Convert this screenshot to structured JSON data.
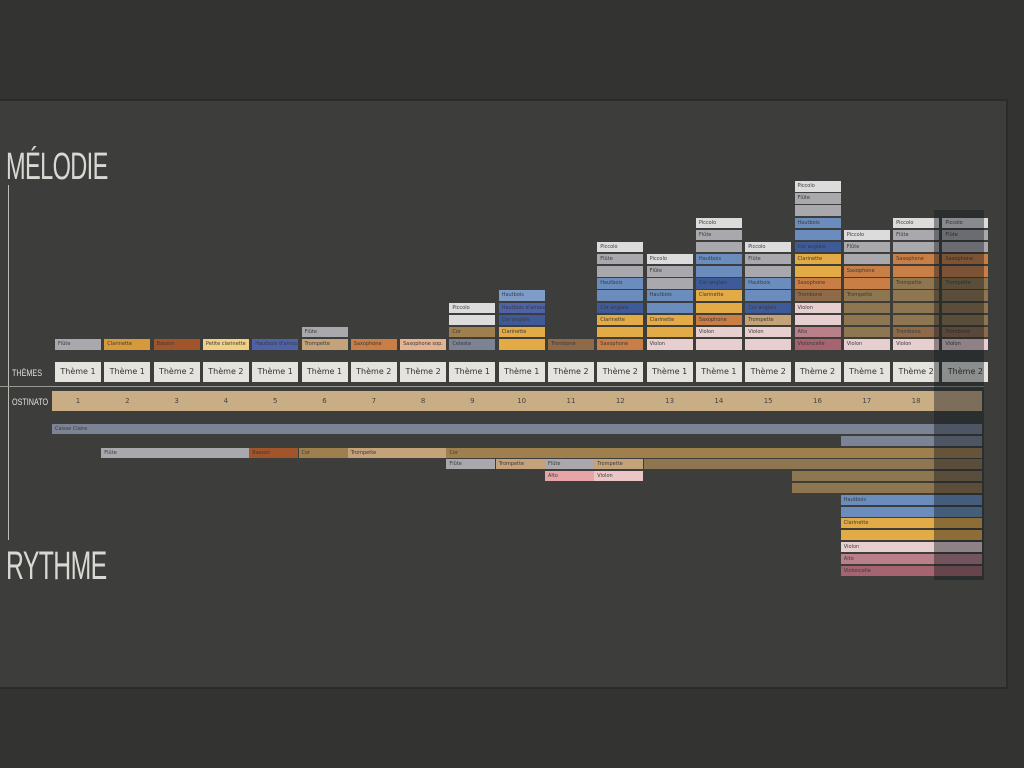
{
  "labels": {
    "melodie": "MÉLODIE",
    "themes": "THÈMES",
    "ostinato": "OSTINATO",
    "rythme": "RYTHME"
  },
  "colors": {
    "grey": "#a9a9ad",
    "white": "#dcdcdc",
    "orange": "#d79a3a",
    "rust": "#a2542a",
    "lightyellow": "#f0cf86",
    "blue": "#4e62a8",
    "tan": "#c4a27a",
    "brown": "#a07f4f",
    "peach": "#e3b392",
    "sax": "#c97e45",
    "slate": "#7b8394",
    "yellow": "#e3ab45",
    "darkblue": "#3f5a98",
    "skyblue": "#7e9dc8",
    "midblue": "#6b8dbd",
    "trombone": "#8e6a49",
    "pink": "#e7cfd0",
    "olive": "#8e7650",
    "mauve": "#b9808a",
    "rose": "#a5646f",
    "lightpink": "#ecc6c6",
    "alto": "#e7a5a7"
  },
  "columns": [
    {
      "theme": "Thème 1",
      "number": "1",
      "stack": [
        [
          "Flûte",
          "grey"
        ]
      ]
    },
    {
      "theme": "Thème 1",
      "number": "2",
      "stack": [
        [
          "Clarinette",
          "orange"
        ]
      ]
    },
    {
      "theme": "Thème 2",
      "number": "3",
      "stack": [
        [
          "Basson",
          "rust"
        ]
      ]
    },
    {
      "theme": "Thème 2",
      "number": "4",
      "stack": [
        [
          "Petite clarinette",
          "lightyellow"
        ]
      ]
    },
    {
      "theme": "Thème 1",
      "number": "5",
      "stack": [
        [
          "Hautbois d'amour",
          "blue"
        ]
      ]
    },
    {
      "theme": "Thème 1",
      "number": "6",
      "stack": [
        [
          "Trompette",
          "tan"
        ],
        [
          "Flûte",
          "grey"
        ]
      ]
    },
    {
      "theme": "Thème 2",
      "number": "7",
      "stack": [
        [
          "Saxophone",
          "sax"
        ]
      ]
    },
    {
      "theme": "Thème 2",
      "number": "8",
      "stack": [
        [
          "Saxophone sop.",
          "peach"
        ]
      ]
    },
    {
      "theme": "Thème 1",
      "number": "9",
      "stack": [
        [
          "Celesta",
          "slate"
        ],
        [
          "Cor",
          "brown"
        ],
        [
          "",
          "white"
        ],
        [
          "Piccolo",
          "white"
        ]
      ]
    },
    {
      "theme": "Thème 1",
      "number": "10",
      "stack": [
        [
          "",
          "yellow"
        ],
        [
          "Clarinette",
          "yellow"
        ],
        [
          "Cor anglais",
          "darkblue"
        ],
        [
          "Hautbois d'amour",
          "blue"
        ],
        [
          "Hautbois",
          "skyblue"
        ]
      ]
    },
    {
      "theme": "Thème 2",
      "number": "11",
      "stack": [
        [
          "Trombone",
          "trombone"
        ]
      ]
    },
    {
      "theme": "Thème 2",
      "number": "12",
      "stack": [
        [
          "Saxophone",
          "sax"
        ],
        [
          "",
          "yellow"
        ],
        [
          "Clarinette",
          "yellow"
        ],
        [
          "Cor anglais",
          "darkblue"
        ],
        [
          "",
          "midblue"
        ],
        [
          "Hautbois",
          "midblue"
        ],
        [
          "",
          "grey"
        ],
        [
          "Flûte",
          "grey"
        ],
        [
          "Piccolo",
          "white"
        ]
      ]
    },
    {
      "theme": "Thème 1",
      "number": "13",
      "stack": [
        [
          "Violon",
          "pink"
        ],
        [
          "",
          "yellow"
        ],
        [
          "Clarinette",
          "yellow"
        ],
        [
          "",
          "midblue"
        ],
        [
          "Hautbois",
          "midblue"
        ],
        [
          "",
          "grey"
        ],
        [
          "Flûte",
          "grey"
        ],
        [
          "Piccolo",
          "white"
        ]
      ]
    },
    {
      "theme": "Thème 1",
      "number": "14",
      "stack": [
        [
          "",
          "pink"
        ],
        [
          "Violon",
          "pink"
        ],
        [
          "Saxophone",
          "sax"
        ],
        [
          "",
          "yellow"
        ],
        [
          "Clarinette",
          "yellow"
        ],
        [
          "Cor anglais",
          "darkblue"
        ],
        [
          "",
          "midblue"
        ],
        [
          "Hautbois",
          "midblue"
        ],
        [
          "",
          "grey"
        ],
        [
          "Flûte",
          "grey"
        ],
        [
          "Piccolo",
          "white"
        ]
      ]
    },
    {
      "theme": "Thème 2",
      "number": "15",
      "stack": [
        [
          "",
          "pink"
        ],
        [
          "Violon",
          "pink"
        ],
        [
          "Trompette",
          "tan"
        ],
        [
          "Cor anglais",
          "darkblue"
        ],
        [
          "",
          "midblue"
        ],
        [
          "Hautbois",
          "midblue"
        ],
        [
          "",
          "grey"
        ],
        [
          "Flûte",
          "grey"
        ],
        [
          "Piccolo",
          "white"
        ]
      ]
    },
    {
      "theme": "Thème 2",
      "number": "16",
      "stack": [
        [
          "Violoncelle",
          "rose"
        ],
        [
          "Alto",
          "mauve"
        ],
        [
          "",
          "pink"
        ],
        [
          "Violon",
          "pink"
        ],
        [
          "Trombone",
          "trombone"
        ],
        [
          "Saxophone",
          "sax"
        ],
        [
          "",
          "yellow"
        ],
        [
          "Clarinette",
          "yellow"
        ],
        [
          "Cor anglais",
          "darkblue"
        ],
        [
          "",
          "midblue"
        ],
        [
          "Hautbois",
          "midblue"
        ],
        [
          "",
          "grey"
        ],
        [
          "Flûte",
          "grey"
        ],
        [
          "Piccolo",
          "white"
        ]
      ]
    },
    {
      "theme": "Thème 1",
      "number": "17",
      "stack": [
        [
          "Violon",
          "pink"
        ],
        [
          "",
          "olive"
        ],
        [
          "",
          "olive"
        ],
        [
          "",
          "olive"
        ],
        [
          "Trompette",
          "olive"
        ],
        [
          "",
          "sax"
        ],
        [
          "Saxophone",
          "sax"
        ],
        [
          "",
          "grey"
        ],
        [
          "Flûte",
          "grey"
        ],
        [
          "Piccolo",
          "white"
        ]
      ]
    },
    {
      "theme": "Thème 2",
      "number": "18",
      "stack": [
        [
          "Violon",
          "pink"
        ],
        [
          "Trombone",
          "trombone"
        ],
        [
          "",
          "olive"
        ],
        [
          "",
          "olive"
        ],
        [
          "",
          "olive"
        ],
        [
          "Trompette",
          "olive"
        ],
        [
          "",
          "sax"
        ],
        [
          "Saxophone",
          "sax"
        ],
        [
          "",
          "grey"
        ],
        [
          "Flûte",
          "grey"
        ],
        [
          "Piccolo",
          "white"
        ]
      ]
    },
    {
      "theme": "Thème 2",
      "number": "",
      "stack": [
        [
          "Violon",
          "pink"
        ],
        [
          "Trombone",
          "trombone"
        ],
        [
          "",
          "olive"
        ],
        [
          "",
          "olive"
        ],
        [
          "",
          "olive"
        ],
        [
          "Trompette",
          "olive"
        ],
        [
          "",
          "sax"
        ],
        [
          "Saxophone",
          "sax"
        ],
        [
          "",
          "grey"
        ],
        [
          "Flûte",
          "grey"
        ],
        [
          "Piccolo",
          "white"
        ]
      ]
    }
  ],
  "rhythm": [
    {
      "row": 0,
      "from": 1,
      "to": 19,
      "label": "Caisse Claire",
      "color": "slate"
    },
    {
      "row": 1,
      "from": 17,
      "to": 19,
      "label": "",
      "color": "slate"
    },
    {
      "row": 2,
      "from": 2,
      "to": 4,
      "label": "Flûte",
      "color": "grey"
    },
    {
      "row": 2,
      "from": 5,
      "to": 5,
      "label": "Basson",
      "color": "rust"
    },
    {
      "row": 2,
      "from": 6,
      "to": 6,
      "label": "Cor",
      "color": "brown"
    },
    {
      "row": 2,
      "from": 7,
      "to": 8,
      "label": "Trompette",
      "color": "tan"
    },
    {
      "row": 2,
      "from": 9,
      "to": 19,
      "label": "Cor",
      "color": "brown"
    },
    {
      "row": 3,
      "from": 9,
      "to": 9,
      "label": "Flûte",
      "color": "grey"
    },
    {
      "row": 3,
      "from": 10,
      "to": 10,
      "label": "Trompette",
      "color": "tan"
    },
    {
      "row": 3,
      "from": 11,
      "to": 11,
      "label": "Flûte",
      "color": "grey"
    },
    {
      "row": 3,
      "from": 12,
      "to": 12,
      "label": "Trompette",
      "color": "tan"
    },
    {
      "row": 3,
      "from": 13,
      "to": 19,
      "label": "",
      "color": "olive"
    },
    {
      "row": 4,
      "from": 11,
      "to": 11,
      "label": "Alto",
      "color": "alto"
    },
    {
      "row": 4,
      "from": 12,
      "to": 12,
      "label": "Violon",
      "color": "lightpink"
    },
    {
      "row": 4,
      "from": 16,
      "to": 19,
      "label": "",
      "color": "olive"
    },
    {
      "row": 5,
      "from": 16,
      "to": 19,
      "label": "",
      "color": "olive"
    },
    {
      "row": 6,
      "from": 17,
      "to": 19,
      "label": "Hautbois",
      "color": "midblue"
    },
    {
      "row": 7,
      "from": 17,
      "to": 19,
      "label": "",
      "color": "midblue"
    },
    {
      "row": 8,
      "from": 17,
      "to": 19,
      "label": "Clarinette",
      "color": "yellow"
    },
    {
      "row": 9,
      "from": 17,
      "to": 19,
      "label": "",
      "color": "yellow"
    },
    {
      "row": 10,
      "from": 17,
      "to": 19,
      "label": "Violon",
      "color": "pink"
    },
    {
      "row": 11,
      "from": 17,
      "to": 19,
      "label": "Alto",
      "color": "mauve"
    },
    {
      "row": 12,
      "from": 17,
      "to": 19,
      "label": "Violoncelle",
      "color": "rose"
    }
  ]
}
